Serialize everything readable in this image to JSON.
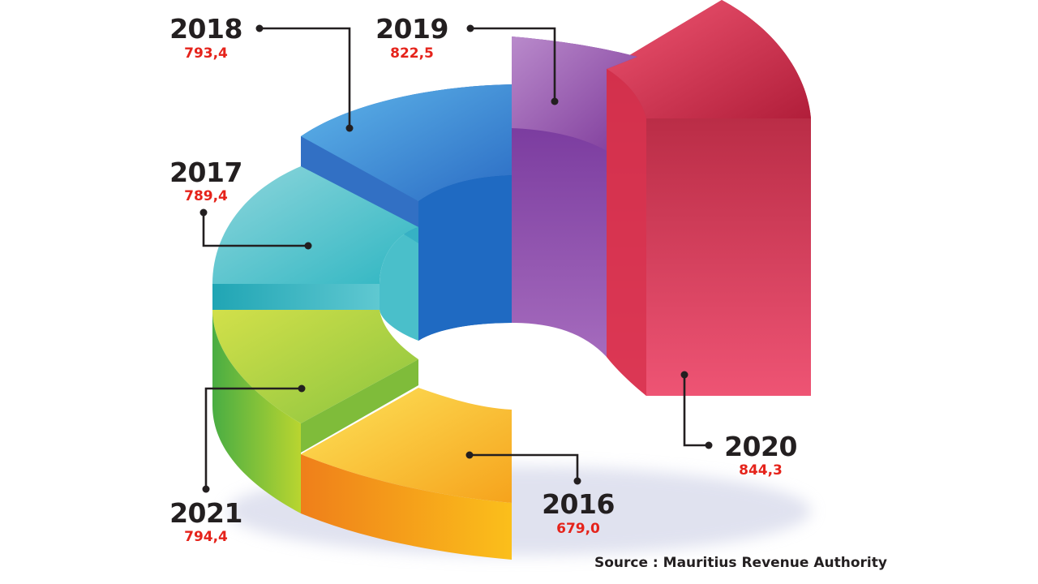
{
  "chart_data": {
    "type": "pie",
    "categories": [
      "2016",
      "2017",
      "2018",
      "2019",
      "2020",
      "2021"
    ],
    "values": [
      679.0,
      789.4,
      793.4,
      822.5,
      844.3,
      794.4
    ],
    "value_labels": [
      "679,0",
      "789,4",
      "793,4",
      "822,5",
      "844,3",
      "794,4"
    ],
    "colors": {
      "2016": "#f7a21b",
      "2017": "#3fb8c4",
      "2018": "#3a8fd6",
      "2019": "#8a3a9e",
      "2020": "#c8203f",
      "2021": "#8ec63f"
    },
    "title": "",
    "source": "Source : Mauritius Revenue Authority"
  }
}
